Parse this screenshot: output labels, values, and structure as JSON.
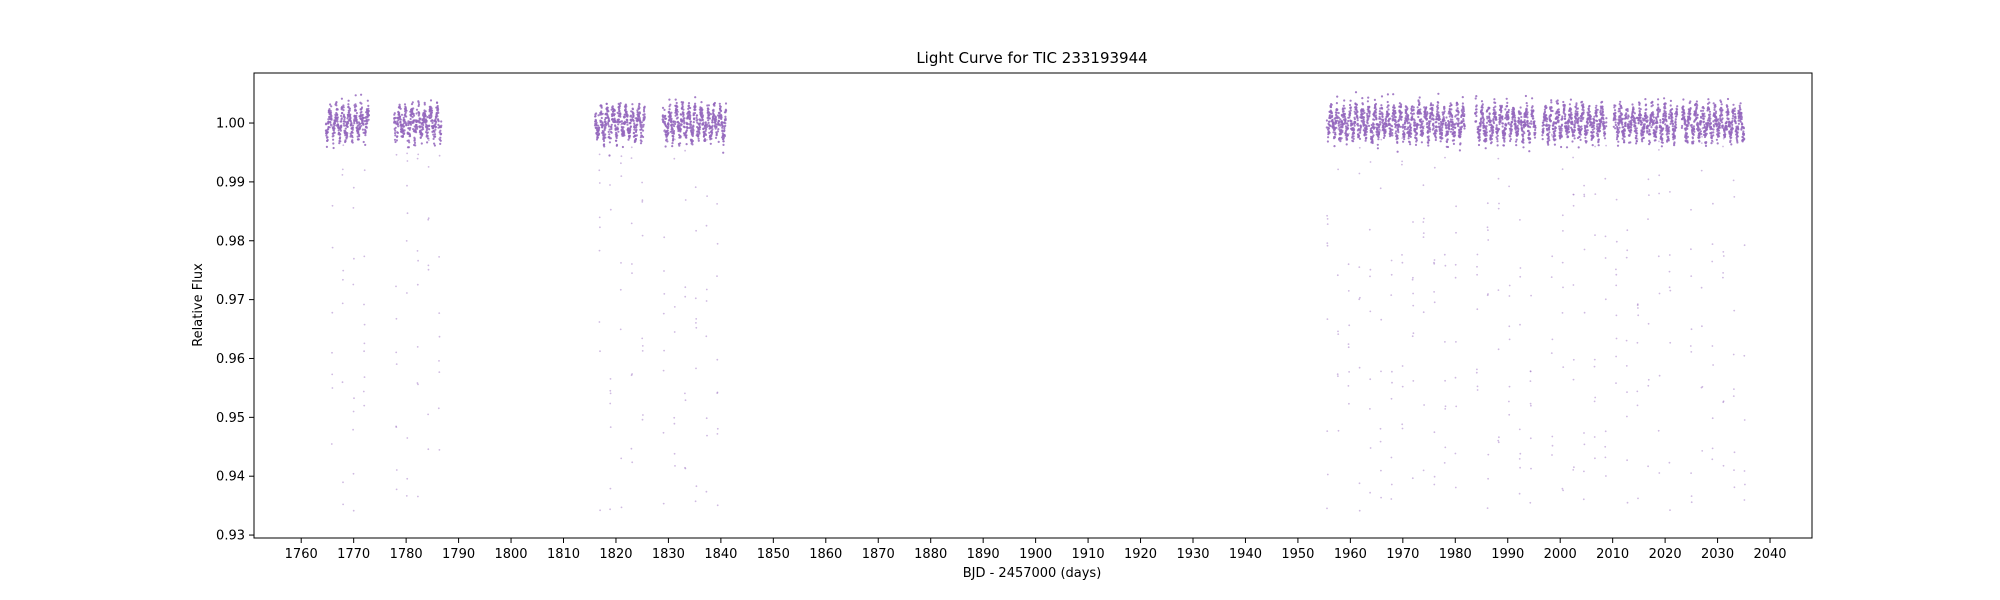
{
  "chart_data": {
    "type": "scatter",
    "title": "Light Curve for TIC 233193944",
    "xlabel": "BJD - 2457000 (days)",
    "ylabel": "Relative Flux",
    "xlim": [
      1751,
      2048
    ],
    "ylim": [
      0.9295,
      1.0085
    ],
    "xticks": [
      1760,
      1770,
      1780,
      1790,
      1800,
      1810,
      1820,
      1830,
      1840,
      1850,
      1860,
      1870,
      1880,
      1890,
      1900,
      1910,
      1920,
      1930,
      1940,
      1950,
      1960,
      1970,
      1980,
      1990,
      2000,
      2010,
      2020,
      2030,
      2040
    ],
    "yticks": [
      0.93,
      0.94,
      0.95,
      0.96,
      0.97,
      0.98,
      0.99,
      1.0
    ],
    "ytick_labels": [
      "0.93",
      "0.94",
      "0.95",
      "0.96",
      "0.97",
      "0.98",
      "0.99",
      "1.00"
    ],
    "grid": false,
    "series": [
      {
        "color": "#9467bd",
        "baseline_flux": 1.0,
        "variability_amplitude": 0.002,
        "variability_period_days": 1.2,
        "scatter": 0.001,
        "dip_depth_min_flux": 0.934,
        "dip_period_days": 2.04,
        "dip_epoch": 1765.9,
        "segments": [
          [
            1764.7,
            1772.9
          ],
          [
            1777.7,
            1786.7
          ],
          [
            1816.0,
            1825.5
          ],
          [
            1828.9,
            1841.0
          ],
          [
            1955.5,
            1981.8
          ],
          [
            1983.8,
            1995.3
          ],
          [
            1996.6,
            2008.8
          ],
          [
            2010.2,
            2022.3
          ],
          [
            2023.2,
            2035.2
          ]
        ]
      }
    ]
  }
}
